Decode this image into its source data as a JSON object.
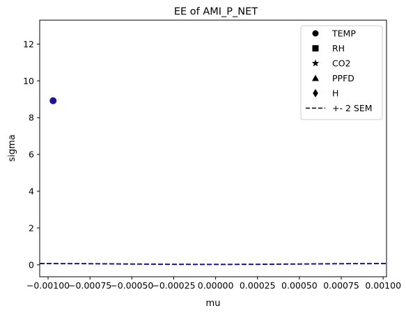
{
  "chart_data": {
    "type": "scatter",
    "title": "EE of AMI_P_NET",
    "xlabel": "mu",
    "ylabel": "sigma",
    "xlim": [
      -0.00105,
      0.00102
    ],
    "ylim": [
      -0.65,
      13.3
    ],
    "xticks": [
      -0.001,
      -0.00075,
      -0.0005,
      -0.00025,
      0.0,
      0.00025,
      0.0005,
      0.00075,
      0.001
    ],
    "xtick_labels": [
      "−0.00100",
      "−0.00075",
      "−0.00050",
      "−0.00025",
      "0.00000",
      "0.00025",
      "0.00050",
      "0.00075",
      "0.00100"
    ],
    "yticks": [
      0,
      2,
      4,
      6,
      8,
      10,
      12
    ],
    "ytick_labels": [
      "0",
      "2",
      "4",
      "6",
      "8",
      "10",
      "12"
    ],
    "grid": false,
    "legend_position": "upper-right",
    "points": [
      {
        "x": -0.00097,
        "y": 8.92,
        "marker": "circle",
        "color": "#1f1499"
      }
    ],
    "sem_line": {
      "color": "#1f1499",
      "style": "dashed",
      "x": [
        -0.00105,
        -0.00075,
        -0.0005,
        -0.00025,
        0.0,
        0.00025,
        0.0005,
        0.00075,
        0.00102
      ],
      "y": [
        0.07,
        0.06,
        0.04,
        0.025,
        0.02,
        0.025,
        0.04,
        0.06,
        0.07
      ]
    },
    "legend": [
      {
        "label": "TEMP",
        "marker": "circle"
      },
      {
        "label": "RH",
        "marker": "square"
      },
      {
        "label": "CO2",
        "marker": "star"
      },
      {
        "label": "PPFD",
        "marker": "triangle"
      },
      {
        "label": "H",
        "marker": "diamond"
      },
      {
        "label": "+- 2 SEM",
        "marker": "dashed-line"
      }
    ]
  }
}
